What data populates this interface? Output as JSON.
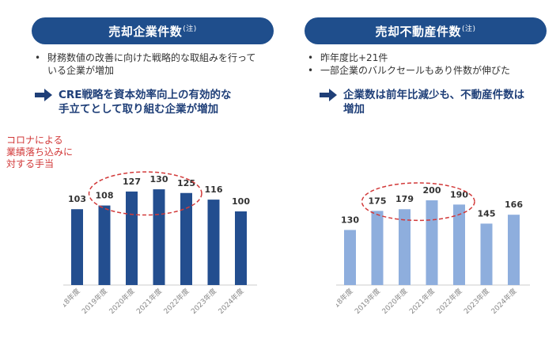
{
  "left": {
    "title": "売却企業件数",
    "title_note": "(注)",
    "bullets": [
      "財務数値の改善に向けた戦略的な取組みを行って",
      "いる企業が増加"
    ],
    "callout": [
      "CRE戦略を資本効率向上の有効的な",
      "手立てとして取り組む企業が増加"
    ],
    "note": [
      "コロナによる",
      "業績落ち込みに",
      "対する手当"
    ]
  },
  "right": {
    "title": "売却不動産件数",
    "title_note": "(注)",
    "bullets": [
      "昨年度比+21件",
      "一部企業のバルクセールもあり件数が伸びた"
    ],
    "callout": [
      "企業数は前年比減少も、不動産件数は",
      "増加"
    ]
  },
  "colors": {
    "header": "#1f4e8c",
    "left_bar": "#234e8f",
    "right_bar": "#8eaedd",
    "highlight": "#d23a3a",
    "callout_text": "#1f3f78"
  },
  "chart_data": [
    {
      "type": "bar",
      "categories": [
        "2018年度",
        "2019年度",
        "2020年度",
        "2021年度",
        "2022年度",
        "2023年度",
        "2024年度"
      ],
      "values": [
        103,
        108,
        127,
        130,
        125,
        116,
        100
      ],
      "title": "売却企業件数",
      "highlight": [
        "2019年度",
        "2020年度",
        "2021年度",
        "2022年度"
      ]
    },
    {
      "type": "bar",
      "categories": [
        "2018年度",
        "2019年度",
        "2020年度",
        "2021年度",
        "2022年度",
        "2023年度",
        "2024年度"
      ],
      "values": [
        130,
        175,
        179,
        200,
        190,
        145,
        166
      ],
      "title": "売却不動産件数",
      "highlight": [
        "2019年度",
        "2020年度",
        "2021年度",
        "2022年度"
      ]
    }
  ]
}
